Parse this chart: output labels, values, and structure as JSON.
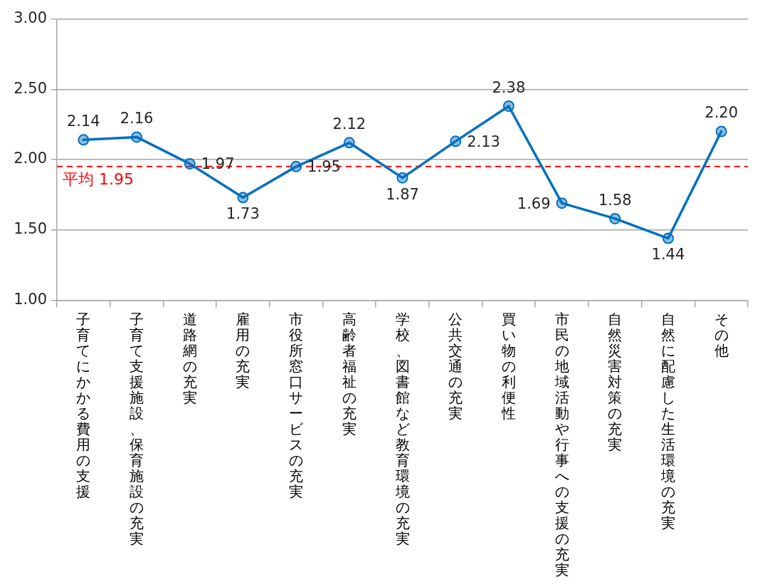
{
  "chart_data": {
    "type": "line",
    "categories": [
      "子育てにかかる費用の支援",
      "子育て支援施設、保育施設の充実",
      "道路網の充実",
      "雇用の充実",
      "市役所窓口サービスの充実",
      "高齢者福祉の充実",
      "学校、図書館など教育環境の充実",
      "公共交通の充実",
      "買い物の利便性",
      "市民の地域活動や行事への支援の充実",
      "自然災害対策の充実",
      "自然に配慮した生活環境の充実",
      "その他"
    ],
    "series": [
      {
        "color": "#0070c0",
        "values": [
          2.14,
          2.16,
          1.97,
          1.73,
          1.95,
          2.12,
          1.87,
          2.13,
          2.38,
          1.69,
          1.58,
          1.44,
          2.2
        ],
        "value_labels": [
          "2.14",
          "2.16",
          "1.97",
          "1.73",
          "1.95",
          "2.12",
          "1.87",
          "2.13",
          "2.38",
          "1.69",
          "1.58",
          "1.44",
          "2.20"
        ]
      }
    ],
    "ylim": [
      1,
      3
    ],
    "yticks": [
      {
        "value": 1,
        "label": "1.00"
      },
      {
        "value": 1.5,
        "label": "1.50"
      },
      {
        "value": 2,
        "label": "2.00"
      },
      {
        "value": 2.5,
        "label": "2.50"
      },
      {
        "value": 3,
        "label": "3.00"
      }
    ],
    "grid": "y",
    "legend": false,
    "marker": "circle",
    "line_style": "solid",
    "ref_lines": [
      {
        "axis": "y",
        "value": 1.95,
        "label": "平均 1.95",
        "color": "#ff0000",
        "line_style": "dashed"
      }
    ]
  }
}
